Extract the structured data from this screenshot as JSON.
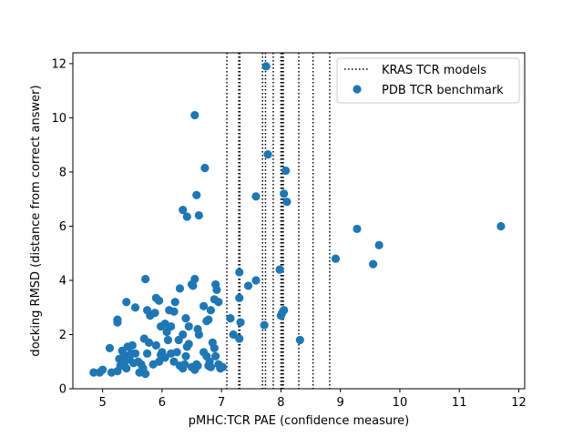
{
  "chart_data": {
    "type": "scatter",
    "xlabel": "pMHC:TCR PAE (confidence measure)",
    "ylabel": "docking RMSD (distance from correct answer)",
    "xlim": [
      4.5,
      12.1
    ],
    "ylim": [
      0,
      12.4
    ],
    "xticks": [
      5,
      6,
      7,
      8,
      9,
      10,
      11,
      12
    ],
    "yticks": [
      0,
      2,
      4,
      6,
      8,
      10,
      12
    ],
    "xtick_labels": [
      "5",
      "6",
      "7",
      "8",
      "9",
      "10",
      "11",
      "12"
    ],
    "ytick_labels": [
      "0",
      "2",
      "4",
      "6",
      "8",
      "10",
      "12"
    ],
    "legend_position": "top-right",
    "grid": false,
    "colors": {
      "points": "#1f77b4",
      "vlines": "#000000"
    },
    "legend": [
      {
        "label": "KRAS TCR models",
        "style": "dotted-line"
      },
      {
        "label": "PDB TCR benchmark",
        "style": "marker"
      }
    ],
    "vlines": {
      "name": "KRAS TCR models",
      "x": [
        7.09,
        7.29,
        7.31,
        7.69,
        7.74,
        7.87,
        8.0,
        8.02,
        8.04,
        8.3,
        8.54,
        8.82
      ]
    },
    "series": [
      {
        "name": "PDB TCR benchmark",
        "points": [
          [
            4.85,
            0.6
          ],
          [
            4.95,
            0.6
          ],
          [
            5.0,
            0.7
          ],
          [
            5.12,
            1.5
          ],
          [
            5.15,
            0.6
          ],
          [
            5.25,
            0.65
          ],
          [
            5.28,
            1.1
          ],
          [
            5.3,
            0.85
          ],
          [
            5.33,
            1.4
          ],
          [
            5.36,
            1.25
          ],
          [
            5.38,
            1.0
          ],
          [
            5.4,
            0.75
          ],
          [
            5.42,
            1.55
          ],
          [
            5.45,
            1.1
          ],
          [
            5.48,
            1.3
          ],
          [
            5.5,
            1.6
          ],
          [
            5.52,
            0.95
          ],
          [
            5.55,
            1.3
          ],
          [
            5.6,
            1.0
          ],
          [
            5.62,
            0.6
          ],
          [
            5.65,
            0.9
          ],
          [
            5.68,
            0.75
          ],
          [
            5.7,
            1.85
          ],
          [
            5.72,
            0.55
          ],
          [
            5.75,
            1.3
          ],
          [
            5.78,
            1.7
          ],
          [
            5.85,
            0.9
          ],
          [
            5.9,
            1.6
          ],
          [
            5.95,
            1.0
          ],
          [
            5.98,
            1.25
          ],
          [
            6.0,
            1.35
          ],
          [
            6.05,
            1.15
          ],
          [
            6.1,
            1.8
          ],
          [
            6.15,
            1.3
          ],
          [
            6.2,
            1.0
          ],
          [
            6.25,
            1.35
          ],
          [
            6.28,
            1.8
          ],
          [
            6.3,
            0.85
          ],
          [
            6.35,
            0.75
          ],
          [
            6.38,
            0.9
          ],
          [
            6.4,
            1.2
          ],
          [
            6.42,
            1.55
          ],
          [
            6.45,
            1.65
          ],
          [
            6.5,
            0.8
          ],
          [
            6.55,
            0.7
          ],
          [
            6.58,
            0.9
          ],
          [
            6.6,
            0.85
          ],
          [
            6.7,
            1.35
          ],
          [
            6.75,
            1.2
          ],
          [
            6.78,
            0.85
          ],
          [
            6.8,
            1.0
          ],
          [
            6.82,
            0.8
          ],
          [
            6.85,
            1.7
          ],
          [
            6.88,
            1.5
          ],
          [
            6.9,
            1.2
          ],
          [
            6.95,
            0.9
          ],
          [
            6.98,
            0.75
          ],
          [
            7.02,
            0.8
          ],
          [
            5.25,
            2.45
          ],
          [
            5.25,
            2.55
          ],
          [
            5.4,
            3.2
          ],
          [
            5.55,
            3.0
          ],
          [
            5.72,
            4.05
          ],
          [
            5.75,
            2.9
          ],
          [
            5.8,
            2.7
          ],
          [
            5.88,
            2.8
          ],
          [
            5.9,
            3.35
          ],
          [
            5.95,
            3.25
          ],
          [
            5.98,
            2.3
          ],
          [
            6.05,
            2.4
          ],
          [
            6.08,
            2.1
          ],
          [
            6.12,
            2.9
          ],
          [
            6.15,
            2.3
          ],
          [
            6.2,
            2.85
          ],
          [
            6.22,
            3.2
          ],
          [
            6.3,
            3.7
          ],
          [
            6.35,
            2.0
          ],
          [
            6.4,
            2.6
          ],
          [
            6.45,
            2.3
          ],
          [
            6.5,
            3.85
          ],
          [
            6.52,
            3.8
          ],
          [
            6.55,
            4.05
          ],
          [
            6.6,
            2.2
          ],
          [
            6.62,
            2.0
          ],
          [
            6.7,
            3.05
          ],
          [
            6.75,
            2.5
          ],
          [
            6.78,
            2.55
          ],
          [
            6.82,
            2.9
          ],
          [
            6.88,
            3.3
          ],
          [
            6.9,
            3.85
          ],
          [
            6.92,
            3.65
          ],
          [
            6.95,
            3.2
          ],
          [
            7.15,
            2.6
          ],
          [
            7.2,
            2.0
          ],
          [
            7.3,
            4.3
          ],
          [
            7.3,
            3.35
          ],
          [
            7.32,
            2.45
          ],
          [
            7.3,
            1.85
          ],
          [
            7.45,
            3.8
          ],
          [
            7.58,
            4.0
          ],
          [
            7.72,
            2.35
          ],
          [
            7.98,
            4.4
          ],
          [
            8.0,
            2.7
          ],
          [
            8.02,
            2.8
          ],
          [
            8.05,
            2.9
          ],
          [
            8.32,
            1.8
          ],
          [
            6.35,
            6.6
          ],
          [
            6.42,
            6.35
          ],
          [
            6.58,
            7.15
          ],
          [
            6.62,
            6.4
          ],
          [
            6.72,
            8.15
          ],
          [
            6.55,
            10.1
          ],
          [
            7.58,
            7.1
          ],
          [
            7.75,
            11.9
          ],
          [
            7.78,
            8.65
          ],
          [
            8.05,
            7.2
          ],
          [
            8.08,
            8.05
          ],
          [
            8.1,
            6.9
          ],
          [
            8.92,
            4.8
          ],
          [
            9.28,
            5.9
          ],
          [
            9.55,
            4.6
          ],
          [
            9.65,
            5.3
          ],
          [
            11.7,
            6.0
          ]
        ]
      }
    ]
  }
}
